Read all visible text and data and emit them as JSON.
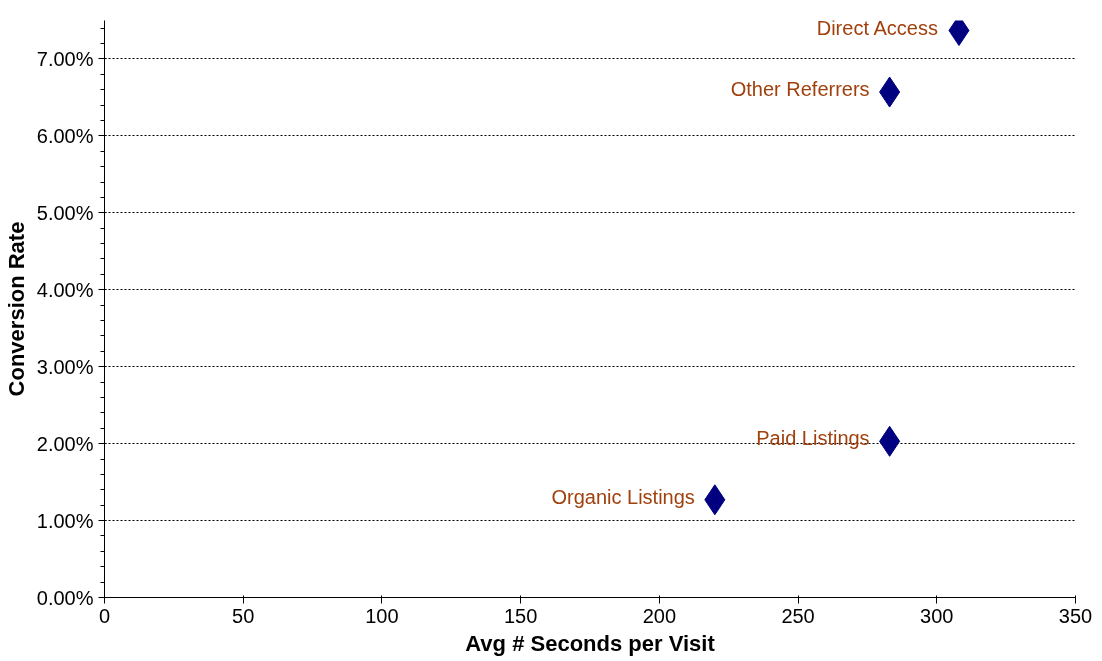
{
  "chart_data": {
    "type": "scatter",
    "xlabel": "Avg # Seconds per Visit",
    "ylabel": "Conversion Rate",
    "x": [
      308,
      283,
      283,
      220
    ],
    "series": [
      {
        "color": "#000080",
        "values": [
          7.37,
          6.57,
          2.03,
          1.27
        ]
      }
    ],
    "marker": "diamond",
    "grid": "y",
    "xlim": [
      0,
      350
    ],
    "xticks": [
      0,
      50,
      100,
      150,
      200,
      250,
      300,
      350
    ],
    "ylim": [
      0,
      7.5
    ],
    "yticks": [
      {
        "value": 0,
        "label": "0.00%"
      },
      {
        "value": 1,
        "label": "1.00%"
      },
      {
        "value": 2,
        "label": "2.00%"
      },
      {
        "value": 3,
        "label": "3.00%"
      },
      {
        "value": 4,
        "label": "4.00%"
      },
      {
        "value": 5,
        "label": "5.00%"
      },
      {
        "value": 6,
        "label": "6.00%"
      },
      {
        "value": 7,
        "label": "7.00%"
      }
    ],
    "annotations": [
      {
        "text": "Direct Access",
        "x": 308,
        "y": 7.37
      },
      {
        "text": "Other Referrers",
        "x": 283,
        "y": 6.57
      },
      {
        "text": "Paid Listings",
        "x": 283,
        "y": 2.03
      },
      {
        "text": "Organic Listings",
        "x": 220,
        "y": 1.27
      }
    ]
  }
}
